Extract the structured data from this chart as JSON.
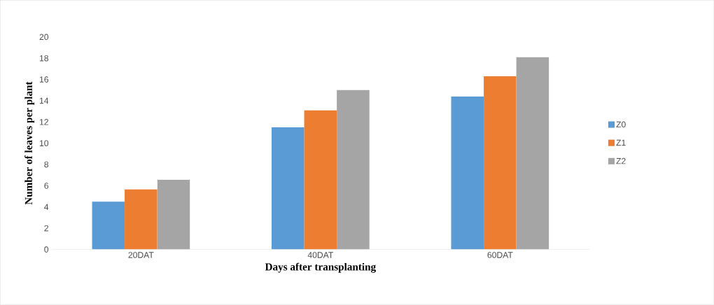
{
  "chart_data": {
    "type": "bar",
    "xlabel": "Days after transplanting",
    "ylabel": "Number of leaves per plant",
    "categories": [
      "20DAT",
      "40DAT",
      "60DAT"
    ],
    "series": [
      {
        "name": "Z0",
        "color": "#5b9bd5",
        "values": [
          4.5,
          11.5,
          14.4
        ]
      },
      {
        "name": "Z1",
        "color": "#ed7d31",
        "values": [
          5.65,
          13.1,
          16.3
        ]
      },
      {
        "name": "Z2",
        "color": "#a5a5a5",
        "values": [
          6.55,
          15.0,
          18.1
        ]
      }
    ],
    "ylim": [
      0,
      20
    ],
    "yticks": [
      0,
      2,
      4,
      6,
      8,
      10,
      12,
      14,
      16,
      18,
      20
    ],
    "grid": false,
    "legend": "right"
  }
}
